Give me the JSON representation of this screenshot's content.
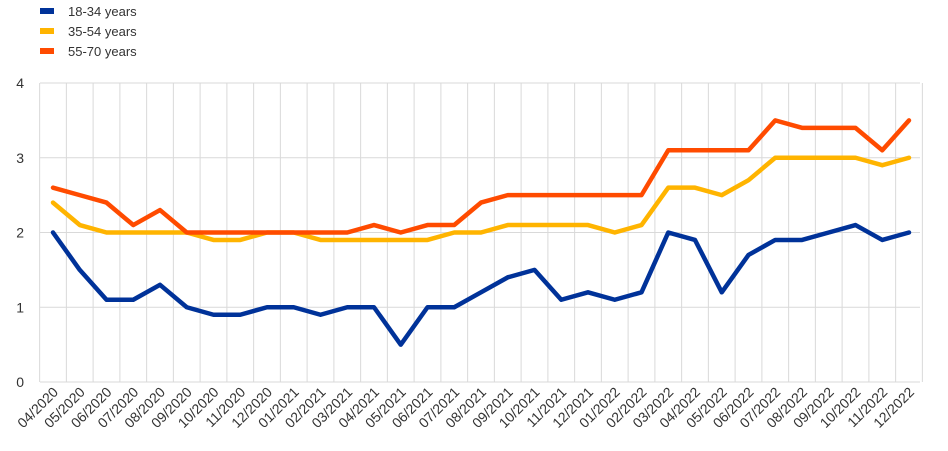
{
  "chart_data": {
    "type": "line",
    "title": "",
    "xlabel": "",
    "ylabel": "",
    "ylim": [
      0,
      4
    ],
    "yticks": [
      0,
      1,
      2,
      3,
      4
    ],
    "grid": "vertical and horizontal light gray gridlines",
    "legend_position": "top-left",
    "categories": [
      "04/2020",
      "05/2020",
      "06/2020",
      "07/2020",
      "08/2020",
      "09/2020",
      "10/2020",
      "11/2020",
      "12/2020",
      "01/2021",
      "02/2021",
      "03/2021",
      "04/2021",
      "05/2021",
      "06/2021",
      "07/2021",
      "08/2021",
      "09/2021",
      "10/2021",
      "11/2021",
      "12/2021",
      "01/2022",
      "02/2022",
      "03/2022",
      "04/2022",
      "05/2022",
      "06/2022",
      "07/2022",
      "08/2022",
      "09/2022",
      "10/2022",
      "11/2022",
      "12/2022"
    ],
    "series": [
      {
        "name": "18-34 years",
        "color": "#003299",
        "values": [
          2.0,
          1.5,
          1.1,
          1.1,
          1.3,
          1.0,
          0.9,
          0.9,
          1.0,
          1.0,
          0.9,
          1.0,
          1.0,
          0.5,
          1.0,
          1.0,
          1.2,
          1.4,
          1.5,
          1.1,
          1.2,
          1.1,
          1.2,
          2.0,
          1.9,
          1.2,
          1.7,
          1.9,
          1.9,
          2.0,
          2.1,
          1.9,
          2.0
        ]
      },
      {
        "name": "35-54 years",
        "color": "#FFB400",
        "values": [
          2.4,
          2.1,
          2.0,
          2.0,
          2.0,
          2.0,
          1.9,
          1.9,
          2.0,
          2.0,
          1.9,
          1.9,
          1.9,
          1.9,
          1.9,
          2.0,
          2.0,
          2.1,
          2.1,
          2.1,
          2.1,
          2.0,
          2.1,
          2.6,
          2.6,
          2.5,
          2.7,
          3.0,
          3.0,
          3.0,
          3.0,
          2.9,
          3.0
        ]
      },
      {
        "name": "55-70 years",
        "color": "#FF4B00",
        "values": [
          2.6,
          2.5,
          2.4,
          2.1,
          2.3,
          2.0,
          2.0,
          2.0,
          2.0,
          2.0,
          2.0,
          2.0,
          2.1,
          2.0,
          2.1,
          2.1,
          2.4,
          2.5,
          2.5,
          2.5,
          2.5,
          2.5,
          2.5,
          3.1,
          3.1,
          3.1,
          3.1,
          3.5,
          3.4,
          3.4,
          3.4,
          3.1,
          3.5
        ]
      }
    ]
  }
}
